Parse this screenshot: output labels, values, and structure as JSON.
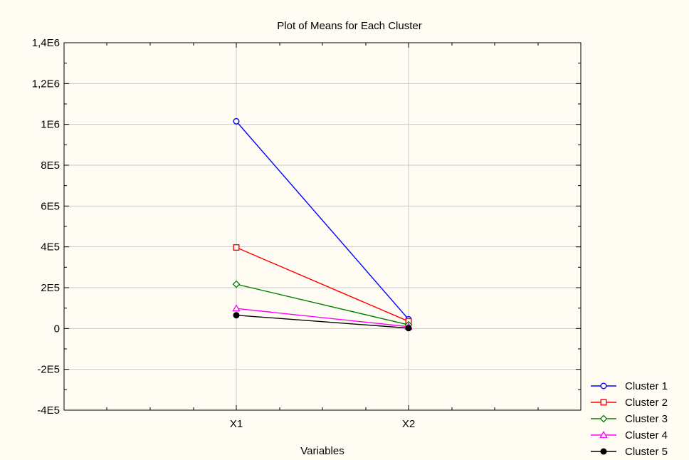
{
  "chart_data": {
    "type": "line",
    "title": "Plot of Means for Each Cluster",
    "xlabel": "Variables",
    "ylabel": "",
    "categories": [
      "X1",
      "X2"
    ],
    "ylim": [
      -400000,
      1400000
    ],
    "y_ticks": [
      {
        "value": 1400000,
        "label": "1,4E6"
      },
      {
        "value": 1200000,
        "label": "1,2E6"
      },
      {
        "value": 1000000,
        "label": "1E6"
      },
      {
        "value": 800000,
        "label": "8E5"
      },
      {
        "value": 600000,
        "label": "6E5"
      },
      {
        "value": 400000,
        "label": "4E5"
      },
      {
        "value": 200000,
        "label": "2E5"
      },
      {
        "value": 0,
        "label": "0"
      },
      {
        "value": -200000,
        "label": "-2E5"
      },
      {
        "value": -400000,
        "label": "-4E5"
      }
    ],
    "grid": true,
    "legend_position": "bottom-right",
    "series": [
      {
        "name": "Cluster  1",
        "values": [
          1015000,
          45000
        ],
        "color": "#0000ff",
        "marker": "circle-open"
      },
      {
        "name": "Cluster  2",
        "values": [
          397000,
          35000
        ],
        "color": "#ff0000",
        "marker": "square-open"
      },
      {
        "name": "Cluster  3",
        "values": [
          217000,
          18000
        ],
        "color": "#008000",
        "marker": "diamond-open"
      },
      {
        "name": "Cluster  4",
        "values": [
          98000,
          9000
        ],
        "color": "#ff00ff",
        "marker": "triangle-open"
      },
      {
        "name": "Cluster  5",
        "values": [
          65000,
          2000
        ],
        "color": "#000000",
        "marker": "circle-filled"
      }
    ]
  }
}
